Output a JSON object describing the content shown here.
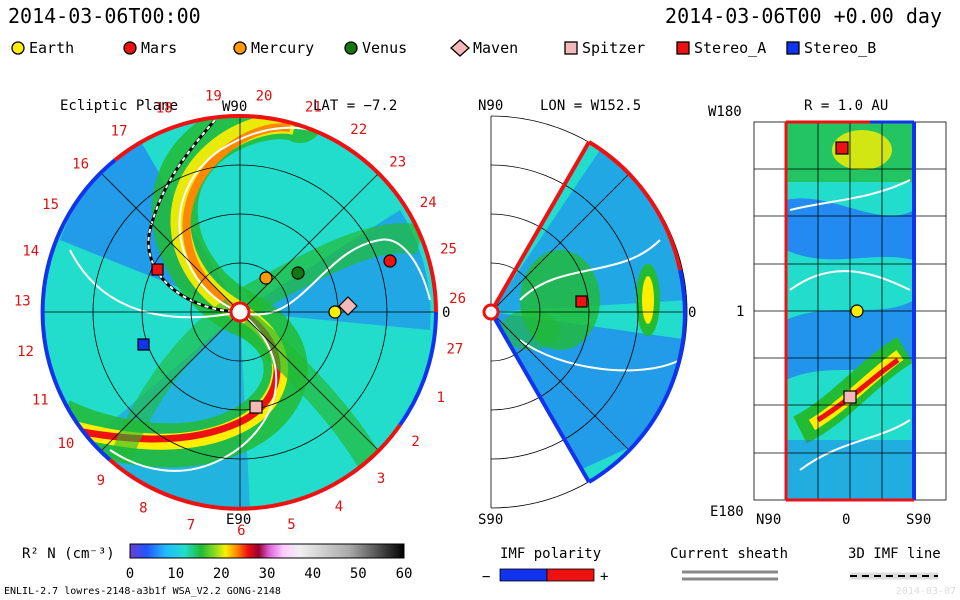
{
  "header": {
    "date_left": "2014-03-06T00:00",
    "date_right": "2014-03-06T00 +0.00 day"
  },
  "legend": [
    {
      "label": "Earth",
      "color": "#ffee00",
      "shape": "circle"
    },
    {
      "label": "Mars",
      "color": "#ee1111",
      "shape": "circle"
    },
    {
      "label": "Mercury",
      "color": "#ff9900",
      "shape": "circle"
    },
    {
      "label": "Venus",
      "color": "#117711",
      "shape": "circle"
    },
    {
      "label": "Maven",
      "color": "#f4b8b8",
      "shape": "diamond"
    },
    {
      "label": "Spitzer",
      "color": "#f4b8b8",
      "shape": "square"
    },
    {
      "label": "Stereo_A",
      "color": "#ee1111",
      "shape": "square"
    },
    {
      "label": "Stereo_B",
      "color": "#1133ee",
      "shape": "square"
    }
  ],
  "panels": {
    "ecliptic": {
      "title": "Ecliptic Plane",
      "top_label": "W90",
      "lat_label": "LAT = −7.2",
      "bottom_label": "E90",
      "right_label": "0",
      "carrington": [
        "19",
        "20",
        "21",
        "22",
        "23",
        "24",
        "25",
        "26",
        "27",
        "1",
        "2",
        "3",
        "4",
        "5",
        "6",
        "7",
        "8",
        "9",
        "10",
        "11",
        "12",
        "13",
        "14",
        "15",
        "16",
        "17",
        "18"
      ]
    },
    "meridional": {
      "top_left": "N90",
      "lon_label": "LON = W152.5",
      "bottom_left": "S90",
      "right_label": "0"
    },
    "radial": {
      "r_label": "R = 1.0 AU",
      "top_left": "W180",
      "mid_left": "1",
      "bottom_left": "E180",
      "x_left": "N90",
      "x_mid": "0",
      "x_right": "S90"
    }
  },
  "colorbar": {
    "label": "R² N (cm⁻³)",
    "ticks": [
      "0",
      "10",
      "20",
      "30",
      "40",
      "50",
      "60"
    ]
  },
  "imf": {
    "title": "IMF polarity",
    "minus": "−",
    "plus": "+",
    "minus_color": "#1133ee",
    "plus_color": "#ee1111"
  },
  "sheath": {
    "title": "Current sheath"
  },
  "imf3d": {
    "title": "3D IMF line"
  },
  "footer": {
    "left": "ENLIL-2.7 lowres-2148-a3b1f WSA_V2.2 GONG-2148",
    "right": "2014-03-07"
  }
}
